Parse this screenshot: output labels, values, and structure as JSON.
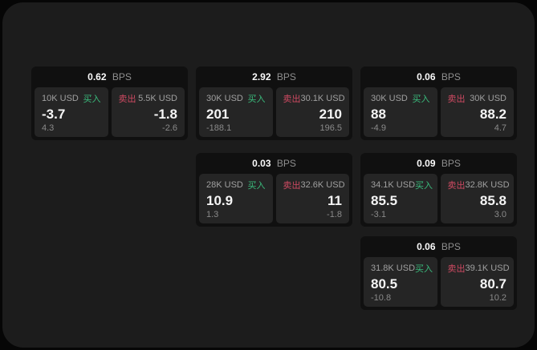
{
  "labels": {
    "bps": "BPS",
    "buy": "买入",
    "sell": "卖出"
  },
  "colors": {
    "buy": "#3abb7c",
    "sell": "#cf4a62",
    "panel_bg": "#1c1c1c",
    "card_bg": "#101010",
    "tile_bg": "#252525"
  },
  "cards": [
    {
      "bps": "0.62",
      "row": 1,
      "col": 1,
      "buy": {
        "amount": "10K USD",
        "price": "-3.7",
        "sub": "4.3"
      },
      "sell": {
        "amount": "5.5K USD",
        "price": "-1.8",
        "sub": "-2.6"
      }
    },
    {
      "bps": "2.92",
      "row": 1,
      "col": 2,
      "buy": {
        "amount": "30K USD",
        "price": "201",
        "sub": "-188.1"
      },
      "sell": {
        "amount": "30.1K USD",
        "price": "210",
        "sub": "196.5"
      }
    },
    {
      "bps": "0.06",
      "row": 1,
      "col": 3,
      "buy": {
        "amount": "30K USD",
        "price": "88",
        "sub": "-4.9"
      },
      "sell": {
        "amount": "30K USD",
        "price": "88.2",
        "sub": "4.7"
      }
    },
    {
      "bps": "0.03",
      "row": 2,
      "col": 2,
      "buy": {
        "amount": "28K USD",
        "price": "10.9",
        "sub": "1.3"
      },
      "sell": {
        "amount": "32.6K USD",
        "price": "11",
        "sub": "-1.8"
      }
    },
    {
      "bps": "0.09",
      "row": 2,
      "col": 3,
      "buy": {
        "amount": "34.1K USD",
        "price": "85.5",
        "sub": "-3.1"
      },
      "sell": {
        "amount": "32.8K USD",
        "price": "85.8",
        "sub": "3.0"
      }
    },
    {
      "bps": "0.06",
      "row": 3,
      "col": 3,
      "buy": {
        "amount": "31.8K USD",
        "price": "80.5",
        "sub": "-10.8"
      },
      "sell": {
        "amount": "39.1K USD",
        "price": "80.7",
        "sub": "10.2"
      }
    }
  ]
}
